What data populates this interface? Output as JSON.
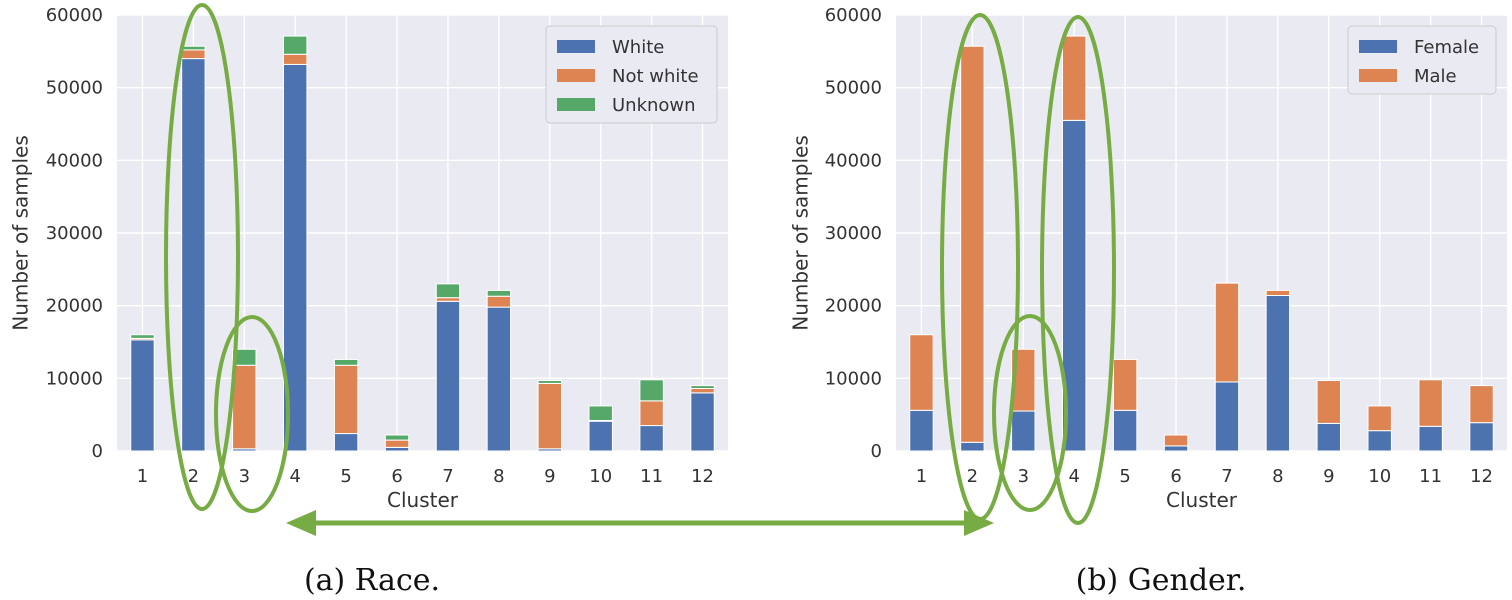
{
  "chart_data": [
    {
      "type": "bar",
      "stacked": true,
      "caption": "(a) Race.",
      "xlabel": "Cluster",
      "ylabel": "Number of samples",
      "categories": [
        "1",
        "2",
        "3",
        "4",
        "5",
        "6",
        "7",
        "8",
        "9",
        "10",
        "11",
        "12"
      ],
      "ylim": [
        0,
        60000
      ],
      "yticks": [
        0,
        10000,
        20000,
        30000,
        40000,
        50000,
        60000
      ],
      "grid": true,
      "legend_position": "top-right",
      "series": [
        {
          "name": "White",
          "color": "#4c72b0",
          "values": [
            15300,
            54000,
            300,
            53200,
            2400,
            500,
            20600,
            19800,
            300,
            4100,
            3500,
            8000
          ]
        },
        {
          "name": "Not white",
          "color": "#dd8452",
          "values": [
            200,
            1200,
            11500,
            1400,
            9400,
            1000,
            500,
            1500,
            9000,
            100,
            3400,
            600
          ]
        },
        {
          "name": "Unknown",
          "color": "#55a868",
          "values": [
            500,
            500,
            2200,
            2500,
            800,
            700,
            1900,
            800,
            400,
            2000,
            2900,
            400
          ]
        }
      ]
    },
    {
      "type": "bar",
      "stacked": true,
      "caption": "(b) Gender.",
      "xlabel": "Cluster",
      "ylabel": "Number of samples",
      "categories": [
        "1",
        "2",
        "3",
        "4",
        "5",
        "6",
        "7",
        "8",
        "9",
        "10",
        "11",
        "12"
      ],
      "ylim": [
        0,
        60000
      ],
      "yticks": [
        0,
        10000,
        20000,
        30000,
        40000,
        50000,
        60000
      ],
      "grid": true,
      "legend_position": "top-right",
      "series": [
        {
          "name": "Female",
          "color": "#4c72b0",
          "values": [
            5600,
            1200,
            5500,
            45500,
            5600,
            700,
            9500,
            21400,
            3800,
            2800,
            3400,
            3900
          ]
        },
        {
          "name": "Male",
          "color": "#dd8452",
          "values": [
            10400,
            54500,
            8500,
            11600,
            7000,
            1500,
            13600,
            700,
            5900,
            3400,
            6400,
            5100
          ]
        }
      ]
    }
  ],
  "annotations": {
    "highlight_color": "#77ab43",
    "arrow_color": "#77ab43",
    "note": "Green ellipses highlight clusters 2 and 3 in the race chart and clusters 2, 3 and 4 in the gender chart; a double-headed arrow connects the two panels."
  }
}
